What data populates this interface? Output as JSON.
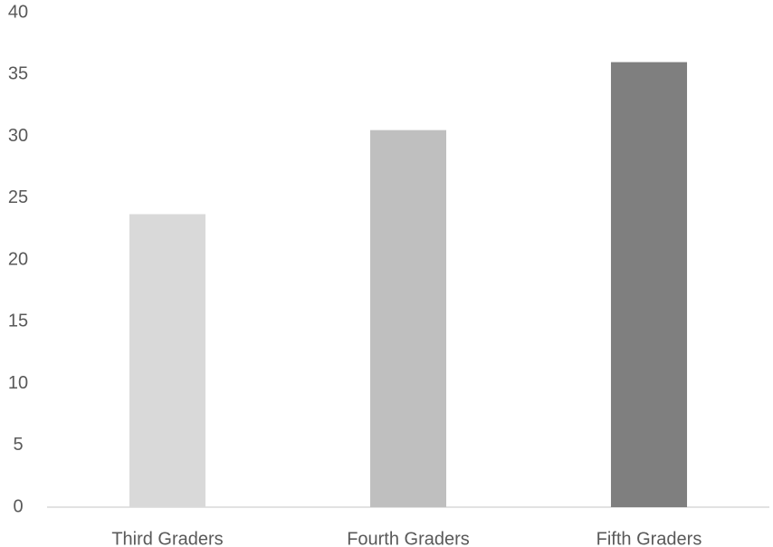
{
  "chart_data": {
    "type": "bar",
    "categories": [
      "Third Graders",
      "Fourth Graders",
      "Fifth Graders"
    ],
    "values": [
      23.7,
      30.5,
      36.0
    ],
    "colors": [
      "#d9d9d9",
      "#bfbfbf",
      "#7f7f7f"
    ],
    "ylim": [
      0,
      40
    ],
    "yticks": [
      0,
      5,
      10,
      15,
      20,
      25,
      30,
      35,
      40
    ],
    "grid": false
  }
}
